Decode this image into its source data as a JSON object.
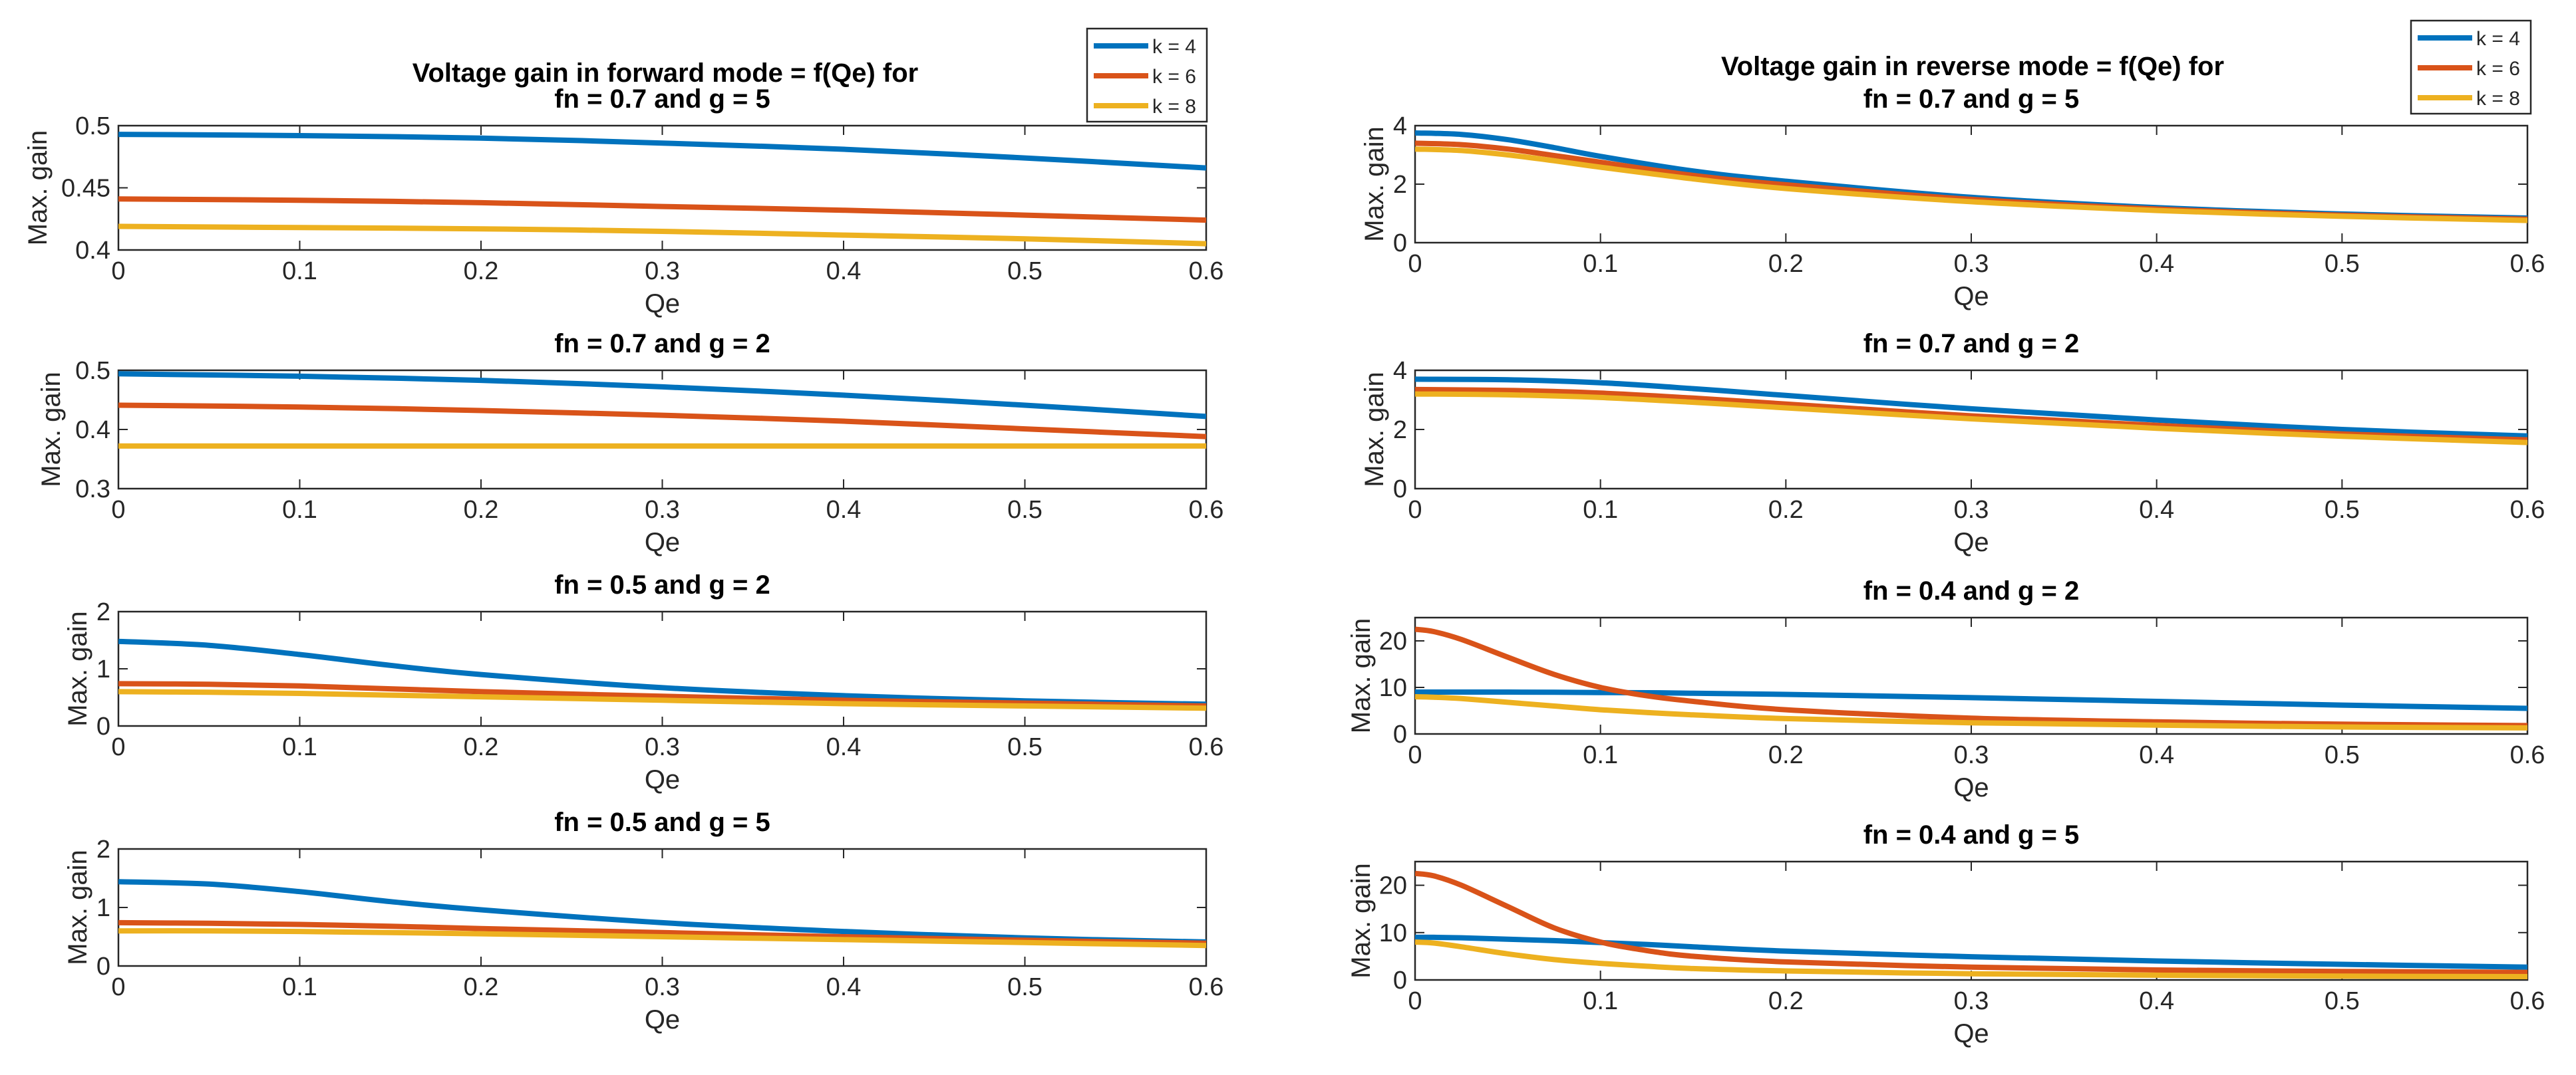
{
  "figure": {
    "left_title_line1": "Voltage gain in forward mode = f(Qe) for",
    "right_title_line1": "Voltage gain in reverse mode = f(Qe) for"
  },
  "colors": {
    "k4": "#0072BD",
    "k6": "#D95319",
    "k8": "#EDB120"
  },
  "legend": {
    "entries": [
      "k = 4",
      "k = 6",
      "k = 8"
    ]
  },
  "chart_data": [
    {
      "id": "forward-1",
      "type": "line",
      "title": "fn = 0.7 and g = 5",
      "xlabel": "Qe",
      "ylabel": "Max. gain",
      "xlim": [
        0,
        0.6
      ],
      "ylim": [
        0.4,
        0.5
      ],
      "xticks": [
        0,
        0.1,
        0.2,
        0.3,
        0.4,
        0.5,
        0.6
      ],
      "yticks": [
        0.4,
        0.45,
        0.5
      ],
      "ytick_labels": [
        "0.4",
        "0.45",
        "0.5"
      ],
      "x": [
        0,
        0.1,
        0.2,
        0.3,
        0.4,
        0.5,
        0.6
      ],
      "series": [
        {
          "name": "k = 4",
          "values": [
            0.493,
            0.492,
            0.49,
            0.486,
            0.481,
            0.474,
            0.466
          ]
        },
        {
          "name": "k = 6",
          "values": [
            0.441,
            0.44,
            0.438,
            0.435,
            0.432,
            0.428,
            0.424
          ]
        },
        {
          "name": "k = 8",
          "values": [
            0.419,
            0.418,
            0.417,
            0.415,
            0.412,
            0.409,
            0.405
          ]
        }
      ]
    },
    {
      "id": "forward-2",
      "type": "line",
      "title": "fn = 0.7 and g = 2",
      "xlabel": "Qe",
      "ylabel": "Max. gain",
      "xlim": [
        0,
        0.6
      ],
      "ylim": [
        0.3,
        0.5
      ],
      "xticks": [
        0,
        0.1,
        0.2,
        0.3,
        0.4,
        0.5,
        0.6
      ],
      "yticks": [
        0.3,
        0.4,
        0.5
      ],
      "ytick_labels": [
        "0.3",
        "0.4",
        "0.5"
      ],
      "x": [
        0,
        0.1,
        0.2,
        0.3,
        0.4,
        0.5,
        0.6
      ],
      "series": [
        {
          "name": "k = 4",
          "values": [
            0.494,
            0.49,
            0.483,
            0.472,
            0.458,
            0.441,
            0.422
          ]
        },
        {
          "name": "k = 6",
          "values": [
            0.441,
            0.438,
            0.432,
            0.424,
            0.414,
            0.401,
            0.388
          ]
        },
        {
          "name": "k = 8",
          "values": [
            0.372,
            0.372,
            0.372,
            0.372,
            0.372,
            0.372,
            0.372
          ]
        }
      ]
    },
    {
      "id": "forward-3",
      "type": "line",
      "title": "fn = 0.5 and g = 2",
      "xlabel": "Qe",
      "ylabel": "Max. gain",
      "xlim": [
        0,
        0.6
      ],
      "ylim": [
        0,
        2
      ],
      "xticks": [
        0,
        0.1,
        0.2,
        0.3,
        0.4,
        0.5,
        0.6
      ],
      "yticks": [
        0,
        1,
        2
      ],
      "ytick_labels": [
        "0",
        "1",
        "2"
      ],
      "x": [
        0,
        0.05,
        0.1,
        0.15,
        0.2,
        0.3,
        0.4,
        0.5,
        0.6
      ],
      "series": [
        {
          "name": "k = 4",
          "values": [
            1.48,
            1.41,
            1.25,
            1.06,
            0.9,
            0.67,
            0.53,
            0.44,
            0.38
          ]
        },
        {
          "name": "k = 6",
          "values": [
            0.74,
            0.73,
            0.7,
            0.65,
            0.6,
            0.52,
            0.45,
            0.4,
            0.35
          ]
        },
        {
          "name": "k = 8",
          "values": [
            0.6,
            0.59,
            0.57,
            0.54,
            0.51,
            0.45,
            0.39,
            0.35,
            0.31
          ]
        }
      ]
    },
    {
      "id": "forward-4",
      "type": "line",
      "title": "fn = 0.5 and g = 5",
      "xlabel": "Qe",
      "ylabel": "Max. gain",
      "xlim": [
        0,
        0.6
      ],
      "ylim": [
        0,
        2
      ],
      "xticks": [
        0,
        0.1,
        0.2,
        0.3,
        0.4,
        0.5,
        0.6
      ],
      "yticks": [
        0,
        1,
        2
      ],
      "ytick_labels": [
        "0",
        "1",
        "2"
      ],
      "x": [
        0,
        0.05,
        0.1,
        0.15,
        0.2,
        0.3,
        0.4,
        0.5,
        0.6
      ],
      "series": [
        {
          "name": "k = 4",
          "values": [
            1.44,
            1.4,
            1.27,
            1.1,
            0.96,
            0.74,
            0.59,
            0.48,
            0.41
          ]
        },
        {
          "name": "k = 6",
          "values": [
            0.74,
            0.73,
            0.71,
            0.68,
            0.64,
            0.57,
            0.5,
            0.44,
            0.39
          ]
        },
        {
          "name": "k = 8",
          "values": [
            0.6,
            0.6,
            0.59,
            0.57,
            0.55,
            0.5,
            0.45,
            0.4,
            0.35
          ]
        }
      ]
    },
    {
      "id": "reverse-1",
      "type": "line",
      "title": "fn = 0.7 and g = 5",
      "xlabel": "Qe",
      "ylabel": "Max. gain",
      "xlim": [
        0,
        0.6
      ],
      "ylim": [
        0,
        4
      ],
      "xticks": [
        0,
        0.1,
        0.2,
        0.3,
        0.4,
        0.5,
        0.6
      ],
      "yticks": [
        0,
        2,
        4
      ],
      "ytick_labels": [
        "0",
        "2",
        "4"
      ],
      "x": [
        0,
        0.025,
        0.05,
        0.075,
        0.1,
        0.15,
        0.2,
        0.3,
        0.4,
        0.5,
        0.6
      ],
      "series": [
        {
          "name": "k = 4",
          "values": [
            3.75,
            3.7,
            3.52,
            3.25,
            2.95,
            2.45,
            2.1,
            1.55,
            1.2,
            0.98,
            0.84
          ]
        },
        {
          "name": "k = 6",
          "values": [
            3.4,
            3.35,
            3.2,
            2.98,
            2.75,
            2.3,
            1.98,
            1.48,
            1.15,
            0.94,
            0.8
          ]
        },
        {
          "name": "k = 8",
          "values": [
            3.2,
            3.15,
            3.0,
            2.8,
            2.58,
            2.18,
            1.85,
            1.4,
            1.1,
            0.9,
            0.76
          ]
        }
      ]
    },
    {
      "id": "reverse-2",
      "type": "line",
      "title": "fn = 0.7 and g = 2",
      "xlabel": "Qe",
      "ylabel": "Max. gain",
      "xlim": [
        0,
        0.6
      ],
      "ylim": [
        0,
        4
      ],
      "xticks": [
        0,
        0.1,
        0.2,
        0.3,
        0.4,
        0.5,
        0.6
      ],
      "yticks": [
        0,
        2,
        4
      ],
      "ytick_labels": [
        "0",
        "2",
        "4"
      ],
      "x": [
        0,
        0.05,
        0.1,
        0.15,
        0.2,
        0.3,
        0.4,
        0.5,
        0.6
      ],
      "series": [
        {
          "name": "k = 4",
          "values": [
            3.7,
            3.68,
            3.58,
            3.38,
            3.15,
            2.7,
            2.32,
            2.0,
            1.78
          ]
        },
        {
          "name": "k = 6",
          "values": [
            3.35,
            3.32,
            3.23,
            3.06,
            2.86,
            2.46,
            2.14,
            1.85,
            1.65
          ]
        },
        {
          "name": "k = 8",
          "values": [
            3.2,
            3.17,
            3.08,
            2.92,
            2.73,
            2.36,
            2.04,
            1.77,
            1.56
          ]
        }
      ]
    },
    {
      "id": "reverse-3",
      "type": "line",
      "title": "fn = 0.4 and g = 2",
      "xlabel": "Qe",
      "ylabel": "Max. gain",
      "xlim": [
        0,
        0.6
      ],
      "ylim": [
        0,
        25
      ],
      "xticks": [
        0,
        0.1,
        0.2,
        0.3,
        0.4,
        0.5,
        0.6
      ],
      "yticks": [
        0,
        10,
        20
      ],
      "ytick_labels": [
        "0",
        "10",
        "20"
      ],
      "x": [
        0,
        0.01,
        0.025,
        0.05,
        0.075,
        0.1,
        0.125,
        0.15,
        0.2,
        0.3,
        0.4,
        0.5,
        0.6
      ],
      "series": [
        {
          "name": "k = 4",
          "values": [
            9.0,
            9.0,
            9.0,
            9.0,
            8.95,
            8.9,
            8.85,
            8.75,
            8.5,
            7.8,
            7.0,
            6.2,
            5.5
          ]
        },
        {
          "name": "k = 6",
          "values": [
            22.5,
            22.0,
            20.3,
            16.5,
            12.8,
            10.0,
            8.2,
            7.0,
            5.2,
            3.4,
            2.6,
            2.1,
            1.8
          ]
        },
        {
          "name": "k = 8",
          "values": [
            8.0,
            7.9,
            7.6,
            6.8,
            6.0,
            5.2,
            4.6,
            4.1,
            3.3,
            2.4,
            1.9,
            1.5,
            1.3
          ]
        }
      ]
    },
    {
      "id": "reverse-4",
      "type": "line",
      "title": "fn = 0.4 and g = 5",
      "xlabel": "Qe",
      "ylabel": "Max. gain",
      "xlim": [
        0,
        0.6
      ],
      "ylim": [
        0,
        25
      ],
      "xticks": [
        0,
        0.1,
        0.2,
        0.3,
        0.4,
        0.5,
        0.6
      ],
      "yticks": [
        0,
        10,
        20
      ],
      "ytick_labels": [
        "0",
        "10",
        "20"
      ],
      "x": [
        0,
        0.01,
        0.025,
        0.05,
        0.075,
        0.1,
        0.125,
        0.15,
        0.2,
        0.3,
        0.4,
        0.5,
        0.6
      ],
      "series": [
        {
          "name": "k = 4",
          "values": [
            9.0,
            9.0,
            8.9,
            8.6,
            8.3,
            7.9,
            7.5,
            7.0,
            6.1,
            4.9,
            4.0,
            3.3,
            2.7
          ]
        },
        {
          "name": "k = 6",
          "values": [
            22.5,
            22.0,
            20.0,
            15.5,
            11.0,
            8.0,
            6.2,
            5.0,
            3.8,
            2.7,
            2.1,
            1.8,
            1.6
          ]
        },
        {
          "name": "k = 8",
          "values": [
            8.0,
            7.8,
            7.0,
            5.5,
            4.3,
            3.5,
            2.9,
            2.4,
            1.9,
            1.3,
            1.0,
            0.8,
            0.7
          ]
        }
      ]
    }
  ]
}
